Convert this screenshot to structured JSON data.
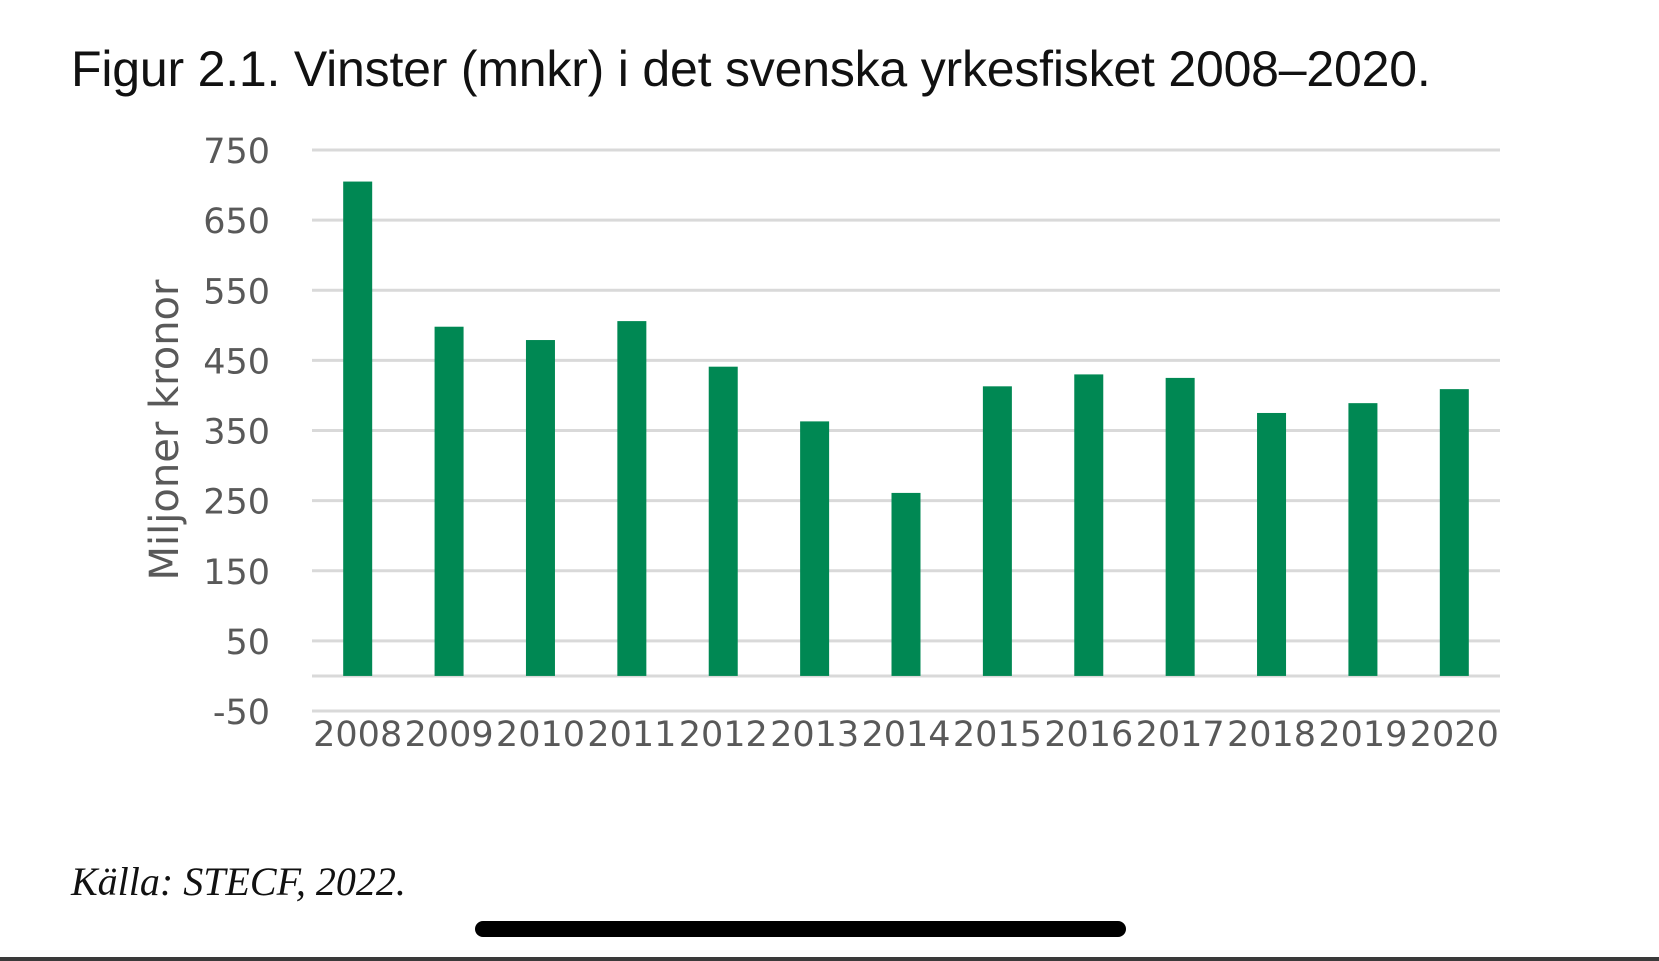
{
  "figure": {
    "title": "Figur 2.1. Vinster (mnkr) i det svenska yrkesfisket 2008–2020.",
    "source": "Källa: STECF, 2022."
  },
  "chart_data": {
    "type": "bar",
    "categories": [
      "2008",
      "2009",
      "2010",
      "2011",
      "2012",
      "2013",
      "2014",
      "2015",
      "2016",
      "2017",
      "2018",
      "2019",
      "2020"
    ],
    "values": [
      705,
      498,
      479,
      506,
      441,
      363,
      261,
      413,
      430,
      425,
      375,
      389,
      409
    ],
    "ylabel": "Miljoner kronor",
    "xlabel": "",
    "ylim": [
      -50,
      750
    ],
    "yticks": [
      -50,
      50,
      150,
      250,
      350,
      450,
      550,
      650,
      750
    ],
    "grid": true,
    "legend": "none",
    "colors": {
      "bar": "#008853",
      "grid": "#d9d9d9",
      "tick_label": "#595959"
    }
  }
}
